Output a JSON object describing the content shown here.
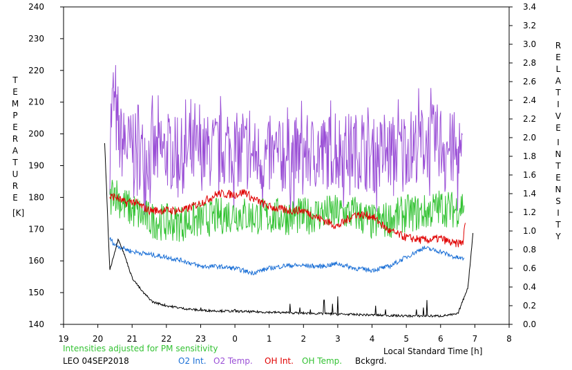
{
  "chart_data": {
    "type": "line",
    "left_axis": {
      "label_letters": [
        "T",
        "E",
        "M",
        "P",
        "E",
        "R",
        "A",
        "T",
        "U",
        "R",
        "E"
      ],
      "unit": "[K]",
      "ticks": [
        140,
        150,
        160,
        170,
        180,
        190,
        200,
        210,
        220,
        230,
        240
      ],
      "ylim": [
        140,
        240
      ]
    },
    "right_axis": {
      "label_word1": [
        "R",
        "E",
        "L",
        "A",
        "T",
        "I",
        "V",
        "E"
      ],
      "label_word2": [
        "I",
        "N",
        "T",
        "E",
        "N",
        "S",
        "I",
        "T",
        "Y"
      ],
      "ticks": [
        "0.0",
        "0.2",
        "0.4",
        "0.6",
        "0.8",
        "1.0",
        "1.2",
        "1.4",
        "1.6",
        "1.8",
        "2.0",
        "2.2",
        "2.4",
        "2.6",
        "2.8",
        "3.0",
        "3.2",
        "3.4"
      ],
      "ylim": [
        0,
        3.4
      ]
    },
    "x_axis": {
      "label": "Local Standard Time [h]",
      "ticks": [
        "19",
        "20",
        "21",
        "22",
        "23",
        "0",
        "1",
        "2",
        "3",
        "4",
        "5",
        "6",
        "7",
        "8"
      ],
      "xlim": [
        19,
        32
      ]
    },
    "note": "Intensities adjusted for PM sensitivity",
    "footer": "LEO 04SEP2018",
    "legend": [
      {
        "name": "O2 Int.",
        "color": "#1a6fd6"
      },
      {
        "name": "O2 Temp.",
        "color": "#9a4fd6"
      },
      {
        "name": "OH Int.",
        "color": "#e00000"
      },
      {
        "name": "OH Temp.",
        "color": "#33c233"
      },
      {
        "name": "Bckgrd.",
        "color": "#000000"
      }
    ],
    "series": [
      {
        "id": "o2_temp",
        "axis": "left",
        "color": "#9a4fd6",
        "knots": [
          [
            20.35,
            200
          ],
          [
            20.45,
            212
          ],
          [
            20.6,
            198
          ],
          [
            21.0,
            195
          ],
          [
            21.5,
            193
          ],
          [
            22.0,
            194
          ],
          [
            22.5,
            193
          ],
          [
            23.0,
            194
          ],
          [
            23.5,
            195
          ],
          [
            24.0,
            195
          ],
          [
            24.5,
            193
          ],
          [
            25.0,
            192
          ],
          [
            25.5,
            193
          ],
          [
            26.0,
            194
          ],
          [
            26.5,
            194
          ],
          [
            27.0,
            195
          ],
          [
            27.5,
            195
          ],
          [
            28.0,
            193
          ],
          [
            28.5,
            194
          ],
          [
            29.0,
            196
          ],
          [
            29.5,
            197
          ],
          [
            30.0,
            198
          ],
          [
            30.4,
            194
          ],
          [
            30.65,
            190
          ]
        ],
        "amp": 12
      },
      {
        "id": "oh_temp",
        "axis": "left",
        "color": "#33c233",
        "knots": [
          [
            20.35,
            178
          ],
          [
            20.45,
            183
          ],
          [
            20.7,
            178
          ],
          [
            21.0,
            176
          ],
          [
            21.5,
            173
          ],
          [
            22.0,
            172
          ],
          [
            22.5,
            172
          ],
          [
            23.0,
            173
          ],
          [
            23.5,
            174
          ],
          [
            24.0,
            175
          ],
          [
            24.5,
            174
          ],
          [
            25.0,
            174
          ],
          [
            25.5,
            174
          ],
          [
            26.0,
            174
          ],
          [
            26.5,
            175
          ],
          [
            27.0,
            175
          ],
          [
            27.5,
            175
          ],
          [
            28.0,
            172
          ],
          [
            28.5,
            173
          ],
          [
            29.0,
            175
          ],
          [
            29.5,
            175
          ],
          [
            30.0,
            177
          ],
          [
            30.4,
            176
          ],
          [
            30.7,
            178
          ]
        ],
        "amp": 6
      },
      {
        "id": "oh_int",
        "axis": "right",
        "color": "#e00000",
        "knots": [
          [
            20.35,
            1.36
          ],
          [
            20.5,
            1.37
          ],
          [
            20.8,
            1.3
          ],
          [
            21.0,
            1.32
          ],
          [
            21.5,
            1.22
          ],
          [
            22.0,
            1.22
          ],
          [
            22.5,
            1.22
          ],
          [
            23.0,
            1.3
          ],
          [
            23.5,
            1.4
          ],
          [
            24.0,
            1.39
          ],
          [
            24.3,
            1.42
          ],
          [
            24.5,
            1.35
          ],
          [
            25.0,
            1.26
          ],
          [
            25.5,
            1.22
          ],
          [
            26.0,
            1.22
          ],
          [
            26.5,
            1.13
          ],
          [
            27.0,
            1.05
          ],
          [
            27.5,
            1.18
          ],
          [
            28.0,
            1.16
          ],
          [
            28.5,
            1.0
          ],
          [
            29.0,
            0.93
          ],
          [
            29.5,
            0.9
          ],
          [
            30.0,
            0.92
          ],
          [
            30.4,
            0.86
          ],
          [
            30.65,
            0.88
          ],
          [
            30.72,
            1.08
          ]
        ],
        "amp": 0.045
      },
      {
        "id": "o2_int",
        "axis": "right",
        "color": "#1a6fd6",
        "knots": [
          [
            20.35,
            0.92
          ],
          [
            20.5,
            0.85
          ],
          [
            21.0,
            0.78
          ],
          [
            21.5,
            0.75
          ],
          [
            22.0,
            0.72
          ],
          [
            22.5,
            0.68
          ],
          [
            23.0,
            0.62
          ],
          [
            23.5,
            0.62
          ],
          [
            24.0,
            0.6
          ],
          [
            24.5,
            0.55
          ],
          [
            25.0,
            0.6
          ],
          [
            25.5,
            0.63
          ],
          [
            26.0,
            0.63
          ],
          [
            26.5,
            0.62
          ],
          [
            27.0,
            0.65
          ],
          [
            27.5,
            0.6
          ],
          [
            28.0,
            0.58
          ],
          [
            28.5,
            0.62
          ],
          [
            29.0,
            0.72
          ],
          [
            29.5,
            0.82
          ],
          [
            30.0,
            0.78
          ],
          [
            30.4,
            0.72
          ],
          [
            30.7,
            0.7
          ]
        ],
        "amp": 0.025
      },
      {
        "id": "bckgrd",
        "axis": "right",
        "color": "#000000",
        "knots": [
          [
            20.2,
            1.95
          ],
          [
            20.28,
            1.2
          ],
          [
            20.35,
            0.58
          ],
          [
            20.45,
            0.72
          ],
          [
            20.6,
            0.92
          ],
          [
            20.8,
            0.72
          ],
          [
            21.0,
            0.5
          ],
          [
            21.3,
            0.35
          ],
          [
            21.6,
            0.24
          ],
          [
            22.0,
            0.2
          ],
          [
            22.5,
            0.17
          ],
          [
            23.0,
            0.15
          ],
          [
            24.0,
            0.14
          ],
          [
            25.0,
            0.13
          ],
          [
            26.0,
            0.12
          ],
          [
            27.0,
            0.11
          ],
          [
            28.0,
            0.1
          ],
          [
            29.0,
            0.09
          ],
          [
            30.0,
            0.09
          ],
          [
            30.5,
            0.11
          ],
          [
            30.8,
            0.4
          ],
          [
            30.95,
            1.0
          ]
        ],
        "spikes": [
          [
            23.0,
            0.18
          ],
          [
            24.0,
            0.16
          ],
          [
            25.6,
            0.22
          ],
          [
            25.9,
            0.18
          ],
          [
            26.6,
            0.26
          ],
          [
            26.85,
            0.22
          ],
          [
            27.0,
            0.3
          ],
          [
            28.1,
            0.2
          ],
          [
            28.4,
            0.16
          ],
          [
            29.5,
            0.18
          ],
          [
            29.6,
            0.26
          ],
          [
            29.3,
            0.16
          ],
          [
            26.2,
            0.16
          ]
        ],
        "amp": 0.012
      }
    ]
  }
}
